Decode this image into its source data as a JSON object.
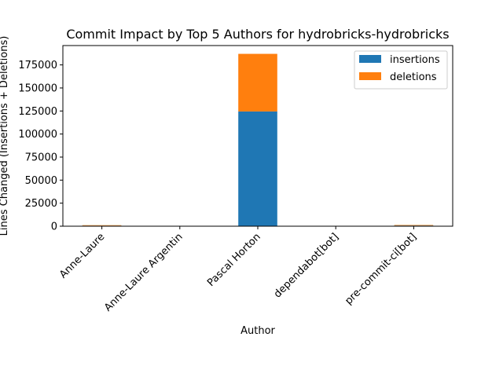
{
  "chart_data": {
    "type": "bar",
    "stacked": true,
    "title": "Commit Impact by Top 5 Authors for hydrobricks-hydrobricks",
    "xlabel": "Author",
    "ylabel": "Lines Changed (Insertions + Deletions)",
    "categories": [
      "Anne-Laure",
      "Anne-Laure Argentin",
      "Pascal Horton",
      "dependabot[bot]",
      "pre-commit-ci[bot]"
    ],
    "series": [
      {
        "name": "insertions",
        "values": [
          600,
          20,
          124500,
          30,
          700
        ],
        "color": "#1f77b4"
      },
      {
        "name": "deletions",
        "values": [
          500,
          10,
          62500,
          25,
          600
        ],
        "color": "#ff7f0e"
      }
    ],
    "yticks": [
      0,
      25000,
      50000,
      75000,
      100000,
      125000,
      150000,
      175000
    ],
    "ylim": [
      0,
      196000
    ],
    "grid": false,
    "legend_position": "top-right"
  }
}
